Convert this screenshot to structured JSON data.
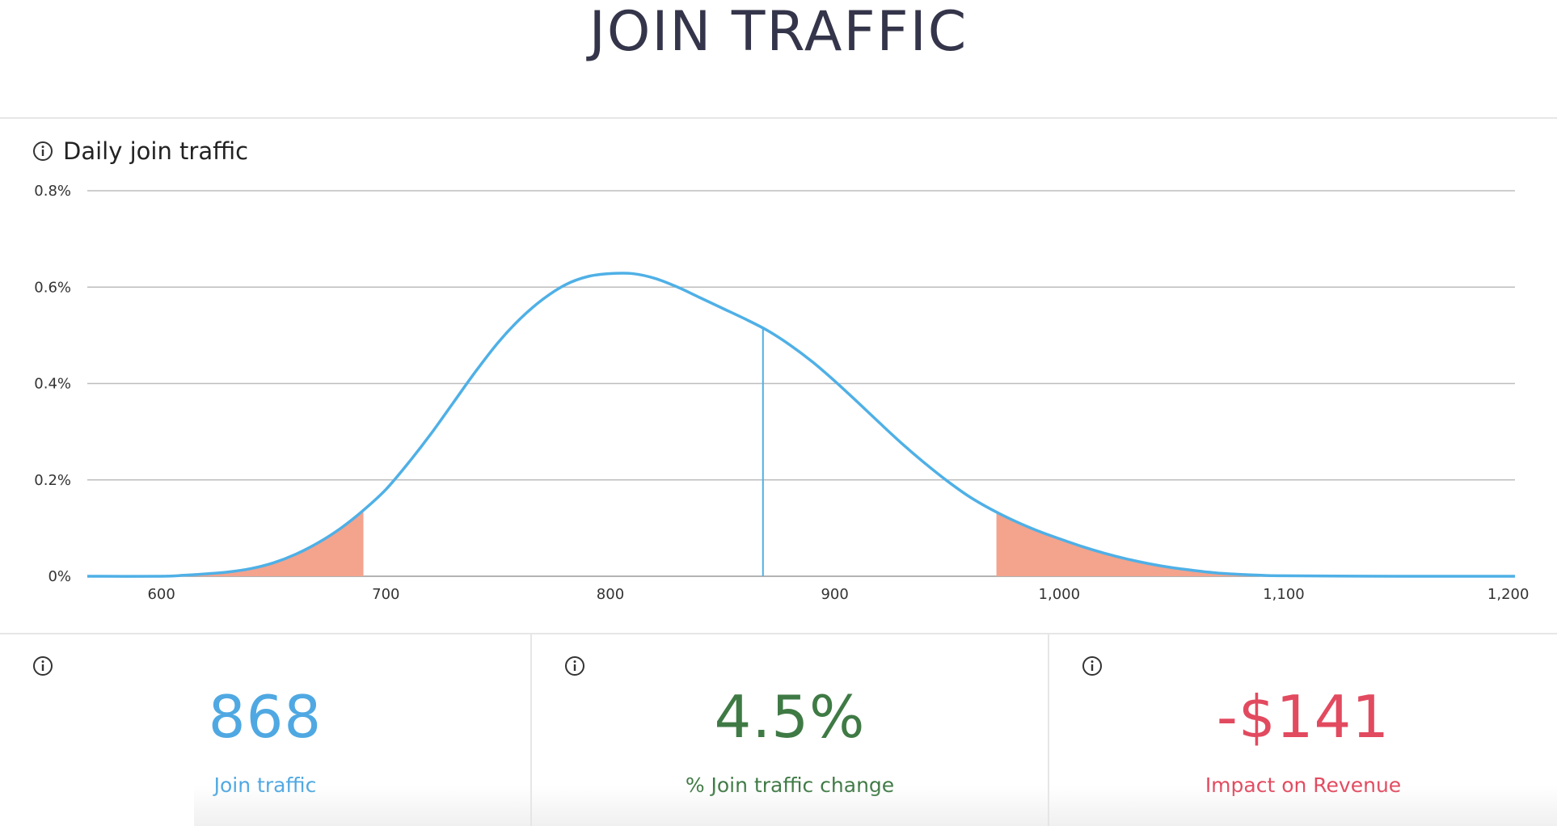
{
  "page": {
    "title": "JOIN TRAFFIC"
  },
  "chart_panel": {
    "title": "Daily join traffic",
    "info_icon": "info-circle-icon"
  },
  "chart_data": {
    "type": "area",
    "title": "Daily join traffic",
    "xlabel": "",
    "ylabel": "",
    "xlim": [
      567,
      1203
    ],
    "ylim": [
      0,
      0.8
    ],
    "y_ticks": [
      0,
      0.2,
      0.4,
      0.6,
      0.8
    ],
    "y_tick_labels": [
      "0%",
      "0.2%",
      "0.4%",
      "0.6%",
      "0.8%"
    ],
    "x_ticks": [
      600,
      700,
      800,
      900,
      1000,
      1100,
      1200
    ],
    "x_tick_labels": [
      "600",
      "700",
      "800",
      "900",
      "1,000",
      "1,100",
      "1,200"
    ],
    "grid": true,
    "legend": "none",
    "series": [
      {
        "color": "#4fb0e6",
        "x": [
          567,
          600,
          610,
          620,
          630,
          640,
          650,
          660,
          670,
          680,
          690,
          700,
          710,
          720,
          730,
          740,
          750,
          760,
          770,
          780,
          790,
          800,
          810,
          820,
          830,
          840,
          850,
          860,
          870,
          880,
          890,
          900,
          910,
          920,
          930,
          940,
          950,
          960,
          970,
          980,
          990,
          1000,
          1010,
          1020,
          1030,
          1040,
          1050,
          1060,
          1070,
          1080,
          1090,
          1100,
          1150,
          1203
        ],
        "y": [
          0.0,
          0.0,
          0.002,
          0.005,
          0.009,
          0.016,
          0.028,
          0.046,
          0.07,
          0.1,
          0.137,
          0.18,
          0.235,
          0.295,
          0.36,
          0.425,
          0.485,
          0.535,
          0.575,
          0.605,
          0.622,
          0.628,
          0.628,
          0.618,
          0.6,
          0.578,
          0.556,
          0.534,
          0.51,
          0.48,
          0.445,
          0.405,
          0.362,
          0.318,
          0.275,
          0.235,
          0.198,
          0.165,
          0.138,
          0.115,
          0.095,
          0.078,
          0.062,
          0.048,
          0.036,
          0.026,
          0.018,
          0.012,
          0.007,
          0.004,
          0.002,
          0.001,
          0.0,
          0.0
        ]
      }
    ],
    "shaded_regions": [
      {
        "from": 567,
        "to": 690,
        "color": "#f4a38d"
      },
      {
        "from": 972,
        "to": 1203,
        "color": "#f4a38d"
      }
    ],
    "marker": {
      "x": 868,
      "color": "#4fb0e6"
    }
  },
  "kpis": [
    {
      "value": "868",
      "label": "Join traffic",
      "color_class": "blue",
      "info_icon": "info-circle-icon"
    },
    {
      "value": "4.5%",
      "label": "% Join traffic change",
      "color_class": "green",
      "info_icon": "info-circle-icon"
    },
    {
      "value": "-$141",
      "label": "Impact on Revenue",
      "color_class": "red",
      "info_icon": "info-circle-icon"
    }
  ]
}
